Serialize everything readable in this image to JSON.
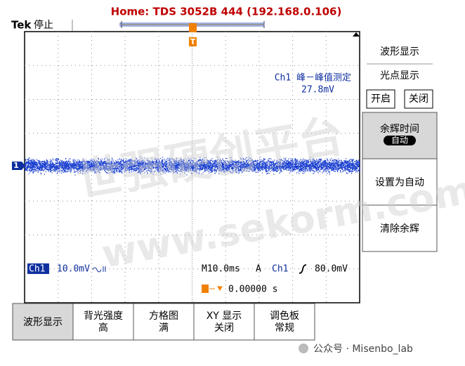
{
  "header": {
    "title": "Home:  TDS 3052B  444  (192.168.0.106)",
    "brand": "Tek",
    "status": "停止"
  },
  "screen": {
    "trigger_marker": "T",
    "channel_marker": "1",
    "measurement_label": "Ch1 峰－峰值测定",
    "measurement_value": "27.8mV",
    "ch1_label": "Ch1",
    "ch1_scale": "10.0mV",
    "timebase": "M10.0ms",
    "trigger_mode": "A",
    "trigger_source": "Ch1",
    "trigger_level": "80.0mV",
    "trigger_position": "0.00000 s"
  },
  "side_menu": {
    "title": "波形显示",
    "item": "光点显示",
    "on": "开启",
    "off": "关闭",
    "persistence_label": "余辉时间",
    "persistence_value": "自动",
    "set_auto": "设置为自动",
    "clear": "清除余辉"
  },
  "bottom_menu": {
    "buttons": [
      {
        "label": "波形显示"
      },
      {
        "label": "背光强度",
        "value": "高"
      },
      {
        "label": "方格图",
        "value": "满"
      },
      {
        "label": "XY 显示",
        "value": "关闭"
      },
      {
        "label": "调色板",
        "value": "常规"
      }
    ]
  },
  "watermark": {
    "line1": "世强硬创平台",
    "line2": "www.sekorm.com"
  },
  "footer": "公众号 · Misenbo_lab"
}
